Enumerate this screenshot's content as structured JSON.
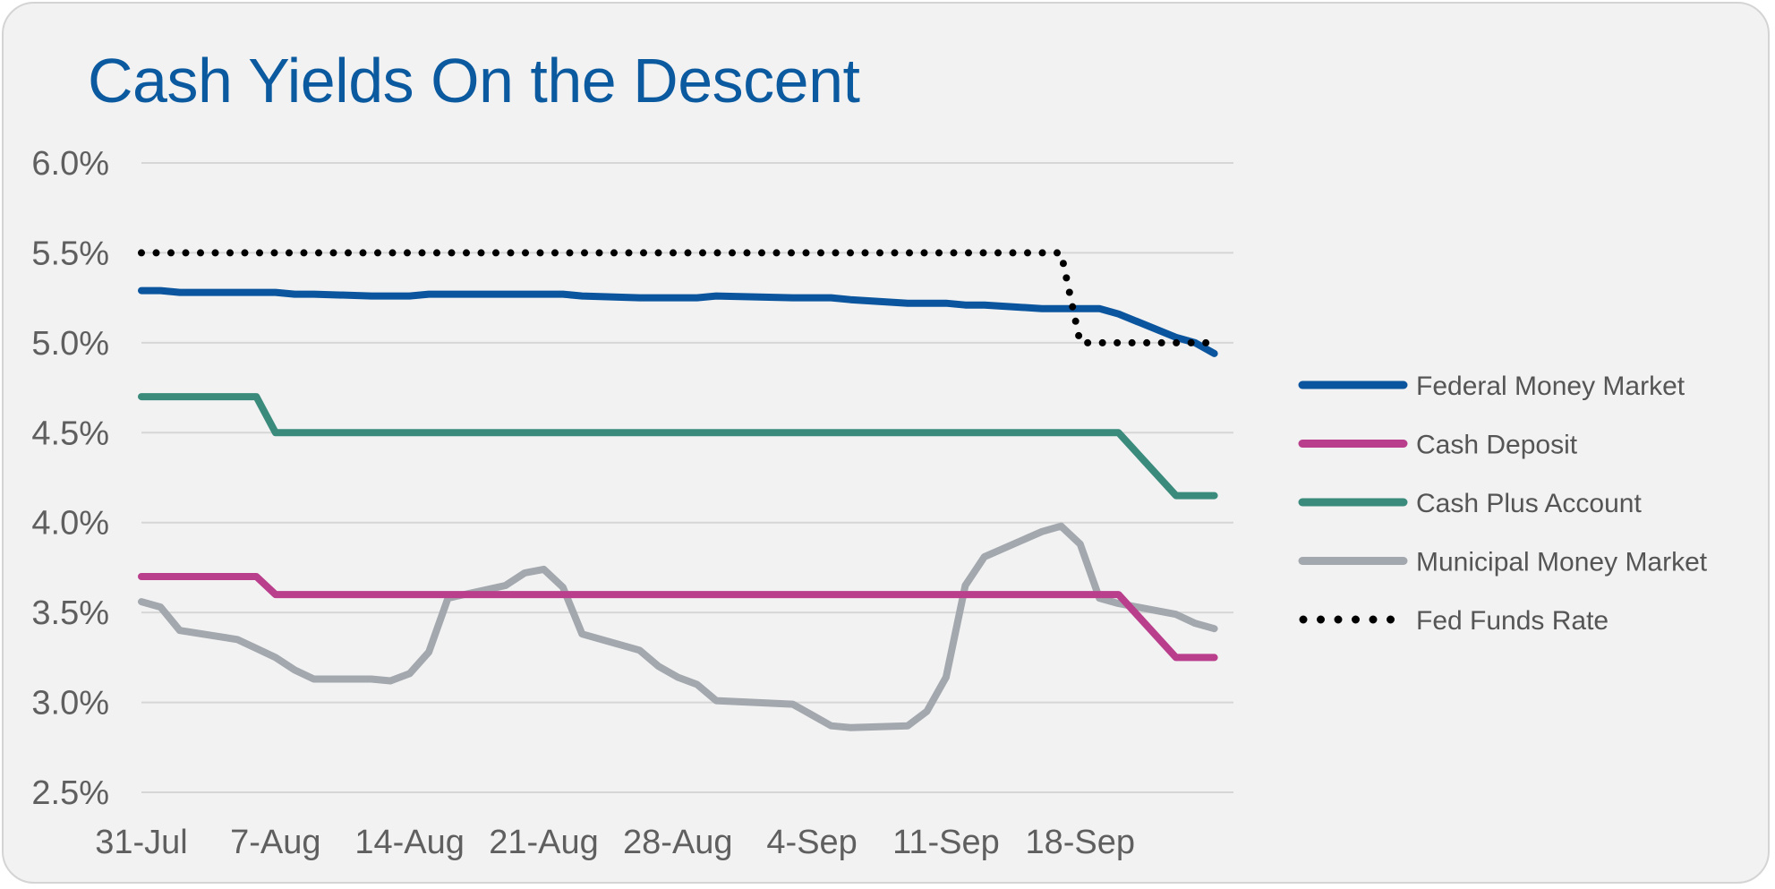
{
  "chart_data": {
    "type": "line",
    "title": "Cash Yields On the Descent",
    "xlabel": "",
    "ylabel": "",
    "x": [
      "2024-07-31",
      "2024-08-01",
      "2024-08-02",
      "2024-08-05",
      "2024-08-06",
      "2024-08-07",
      "2024-08-08",
      "2024-08-09",
      "2024-08-12",
      "2024-08-13",
      "2024-08-14",
      "2024-08-15",
      "2024-08-16",
      "2024-08-19",
      "2024-08-20",
      "2024-08-21",
      "2024-08-22",
      "2024-08-23",
      "2024-08-26",
      "2024-08-27",
      "2024-08-28",
      "2024-08-29",
      "2024-08-30",
      "2024-09-03",
      "2024-09-04",
      "2024-09-05",
      "2024-09-06",
      "2024-09-09",
      "2024-09-10",
      "2024-09-11",
      "2024-09-12",
      "2024-09-13",
      "2024-09-16",
      "2024-09-17",
      "2024-09-18",
      "2024-09-19",
      "2024-09-20",
      "2024-09-23",
      "2024-09-24",
      "2024-09-25"
    ],
    "x_ticks": [
      "31-Jul",
      "7-Aug",
      "14-Aug",
      "21-Aug",
      "28-Aug",
      "4-Sep",
      "11-Sep",
      "18-Sep"
    ],
    "x_tick_dates": [
      "2024-07-31",
      "2024-08-07",
      "2024-08-14",
      "2024-08-21",
      "2024-08-28",
      "2024-09-04",
      "2024-09-11",
      "2024-09-18"
    ],
    "x_range": [
      "2024-07-31",
      "2024-09-26"
    ],
    "y_ticks": [
      "6.0%",
      "5.5%",
      "5.0%",
      "4.5%",
      "4.0%",
      "3.5%",
      "3.0%",
      "2.5%"
    ],
    "ylim": [
      2.5,
      6.0
    ],
    "grid": true,
    "legend_position": "right",
    "series": [
      {
        "name": "Federal Money Market",
        "color": "#0b559e",
        "style": "solid",
        "values": [
          5.29,
          5.29,
          5.28,
          5.28,
          5.28,
          5.28,
          5.27,
          5.27,
          5.26,
          5.26,
          5.26,
          5.27,
          5.27,
          5.27,
          5.27,
          5.27,
          5.27,
          5.26,
          5.25,
          5.25,
          5.25,
          5.25,
          5.26,
          5.25,
          5.25,
          5.25,
          5.24,
          5.22,
          5.22,
          5.22,
          5.21,
          5.21,
          5.19,
          5.19,
          5.19,
          5.19,
          5.16,
          5.03,
          5.0,
          4.94
        ]
      },
      {
        "name": "Cash Deposit",
        "color": "#b93e8b",
        "style": "solid",
        "values": [
          3.7,
          3.7,
          3.7,
          3.7,
          3.7,
          3.6,
          3.6,
          3.6,
          3.6,
          3.6,
          3.6,
          3.6,
          3.6,
          3.6,
          3.6,
          3.6,
          3.6,
          3.6,
          3.6,
          3.6,
          3.6,
          3.6,
          3.6,
          3.6,
          3.6,
          3.6,
          3.6,
          3.6,
          3.6,
          3.6,
          3.6,
          3.6,
          3.6,
          3.6,
          3.6,
          3.6,
          3.6,
          3.25,
          3.25,
          3.25
        ]
      },
      {
        "name": "Cash Plus Account",
        "color": "#3a8b7c",
        "style": "solid",
        "values": [
          4.7,
          4.7,
          4.7,
          4.7,
          4.7,
          4.5,
          4.5,
          4.5,
          4.5,
          4.5,
          4.5,
          4.5,
          4.5,
          4.5,
          4.5,
          4.5,
          4.5,
          4.5,
          4.5,
          4.5,
          4.5,
          4.5,
          4.5,
          4.5,
          4.5,
          4.5,
          4.5,
          4.5,
          4.5,
          4.5,
          4.5,
          4.5,
          4.5,
          4.5,
          4.5,
          4.5,
          4.5,
          4.15,
          4.15,
          4.15
        ]
      },
      {
        "name": "Municipal Money Market",
        "color": "#a3a8ae",
        "style": "solid",
        "values": [
          3.56,
          3.53,
          3.4,
          3.35,
          3.3,
          3.25,
          3.18,
          3.13,
          3.13,
          3.12,
          3.16,
          3.28,
          3.58,
          3.65,
          3.72,
          3.74,
          3.64,
          3.38,
          3.29,
          3.2,
          3.14,
          3.1,
          3.01,
          2.99,
          2.93,
          2.87,
          2.86,
          2.87,
          2.95,
          3.14,
          3.65,
          3.81,
          3.95,
          3.98,
          3.88,
          3.58,
          3.55,
          3.49,
          3.44,
          3.41
        ]
      },
      {
        "name": "Fed Funds Rate",
        "color": "#000000",
        "style": "dotted",
        "values": [
          5.5,
          5.5,
          5.5,
          5.5,
          5.5,
          5.5,
          5.5,
          5.5,
          5.5,
          5.5,
          5.5,
          5.5,
          5.5,
          5.5,
          5.5,
          5.5,
          5.5,
          5.5,
          5.5,
          5.5,
          5.5,
          5.5,
          5.5,
          5.5,
          5.5,
          5.5,
          5.5,
          5.5,
          5.5,
          5.5,
          5.5,
          5.5,
          5.5,
          5.5,
          5.0,
          5.0,
          5.0,
          5.0,
          5.0,
          5.0
        ]
      }
    ]
  }
}
